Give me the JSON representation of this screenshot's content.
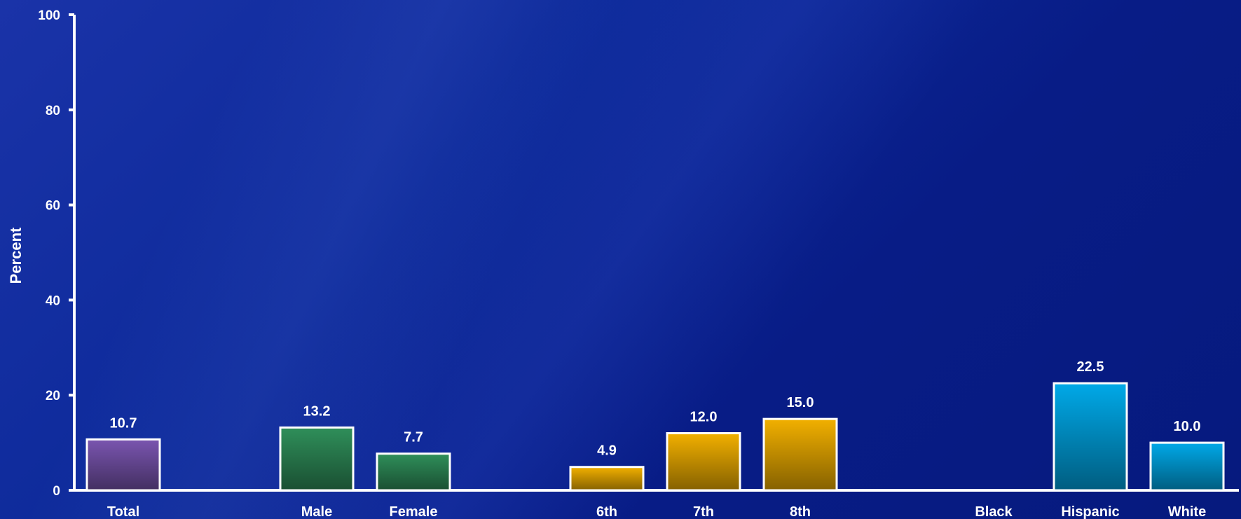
{
  "chart_data": {
    "type": "bar",
    "title": "",
    "xlabel": "",
    "ylabel": "Percent",
    "ylim": [
      0,
      100
    ],
    "yticks": [
      0,
      20,
      40,
      60,
      80,
      100
    ],
    "grid": false,
    "categories": [
      "Total",
      "Male",
      "Female",
      "6th",
      "7th",
      "8th",
      "Black",
      "Hispanic",
      "White"
    ],
    "values": [
      10.7,
      13.2,
      7.7,
      4.9,
      12.0,
      15.0,
      null,
      22.5,
      10.0
    ],
    "value_labels": [
      "10.7",
      "13.2",
      "7.7",
      "4.9",
      "12.0",
      "15.0",
      "",
      "22.5",
      "10.0"
    ],
    "colors": [
      "#7a55b0",
      "#2f8f5a",
      "#2f8f5a",
      "#f2b000",
      "#f2b000",
      "#f2b000",
      "#00a9e8",
      "#00a9e8",
      "#00a9e8"
    ]
  }
}
